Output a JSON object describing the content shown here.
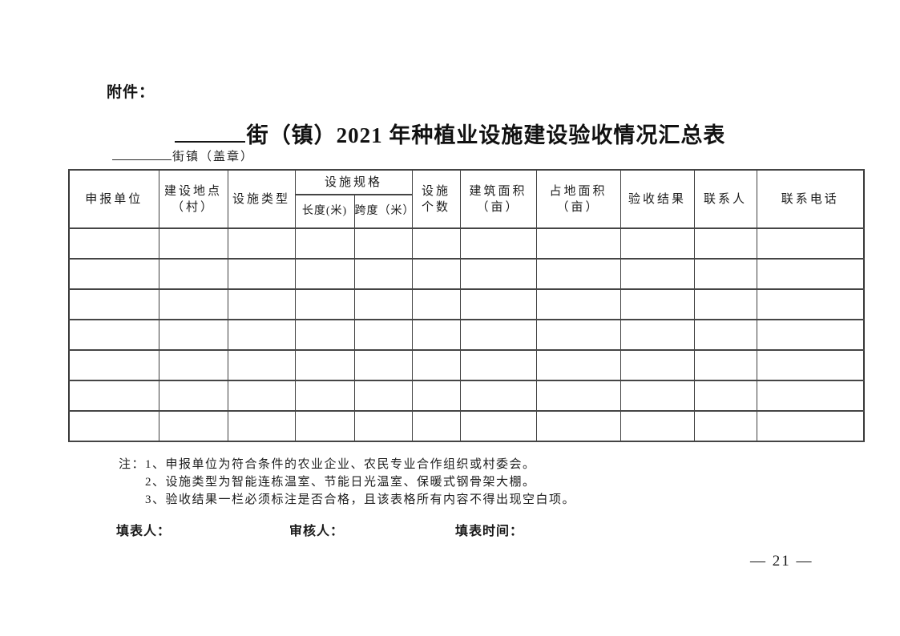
{
  "page": {
    "attachment_label": "附件：",
    "page_number": "— 21 —"
  },
  "title": {
    "text": "街（镇）2021 年种植业设施建设验收情况汇总表"
  },
  "subtitle": {
    "text": "街镇（盖章）"
  },
  "table": {
    "headers": [
      "申报单位",
      "建设地点\n（村）",
      "设施类型",
      "设施规格",
      "设施\n个数",
      "建筑面积\n（亩）",
      "占地面积\n（亩）",
      "验收结果",
      "联系人",
      "联系电话"
    ],
    "subheaders": [
      "长度(米)",
      "跨度（米）"
    ],
    "grid": {
      "empty_rows": 7,
      "cols": 11
    }
  },
  "notes": [
    "注：1、申报单位为符合条件的农业企业、农民专业合作组织或村委会。",
    "2、设施类型为智能连栋温室、节能日光温室、保暖式钢骨架大棚。",
    "3、验收结果一栏必须标注是否合格，且该表格所有内容不得出现空白项。"
  ],
  "footer": {
    "filler_label": "填表人：",
    "reviewer_label": "审核人：",
    "time_label": "填表时间："
  },
  "colors": {
    "text": "#1c1c1c",
    "border": "#404040",
    "background": "#ffffff"
  }
}
